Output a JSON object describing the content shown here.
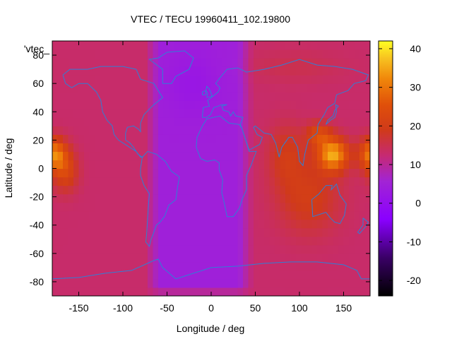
{
  "chart_data": {
    "type": "heatmap",
    "title": "VTEC / TECU 19960411_102.19800",
    "xlabel": "Longitude / deg",
    "ylabel": "Latitude / deg",
    "key_label": "'vtec_",
    "xlim": [
      -180,
      180
    ],
    "ylim": [
      -90,
      90
    ],
    "x_ticks": [
      -150,
      -100,
      -50,
      0,
      50,
      100,
      150
    ],
    "y_ticks": [
      80,
      60,
      40,
      20,
      0,
      -20,
      -40,
      -60,
      -80
    ],
    "colorbar": {
      "range": [
        -24,
        42
      ],
      "ticks": [
        40,
        30,
        20,
        10,
        0,
        -10,
        -20
      ],
      "palette": "black-purple-red-orange-yellow"
    },
    "field_features": [
      {
        "lon": 135,
        "lat": 10,
        "tec": 35
      },
      {
        "lon": 120,
        "lat": 25,
        "tec": 24
      },
      {
        "lon": -175,
        "lat": 10,
        "tec": 32
      },
      {
        "lon": -170,
        "lat": 0,
        "tec": 26
      },
      {
        "lon": -20,
        "lat": 0,
        "tec": 3
      },
      {
        "lon": -10,
        "lat": 60,
        "tec": 4
      },
      {
        "lon": -30,
        "lat": -30,
        "tec": 4
      },
      {
        "lon": 110,
        "lat": -25,
        "tec": 20
      },
      {
        "lon": 80,
        "lat": 10,
        "tec": 18
      },
      {
        "lon": 0,
        "lat": -85,
        "tec": 12
      },
      {
        "lon": 100,
        "lat": 70,
        "tec": 13
      }
    ],
    "grid": false
  }
}
